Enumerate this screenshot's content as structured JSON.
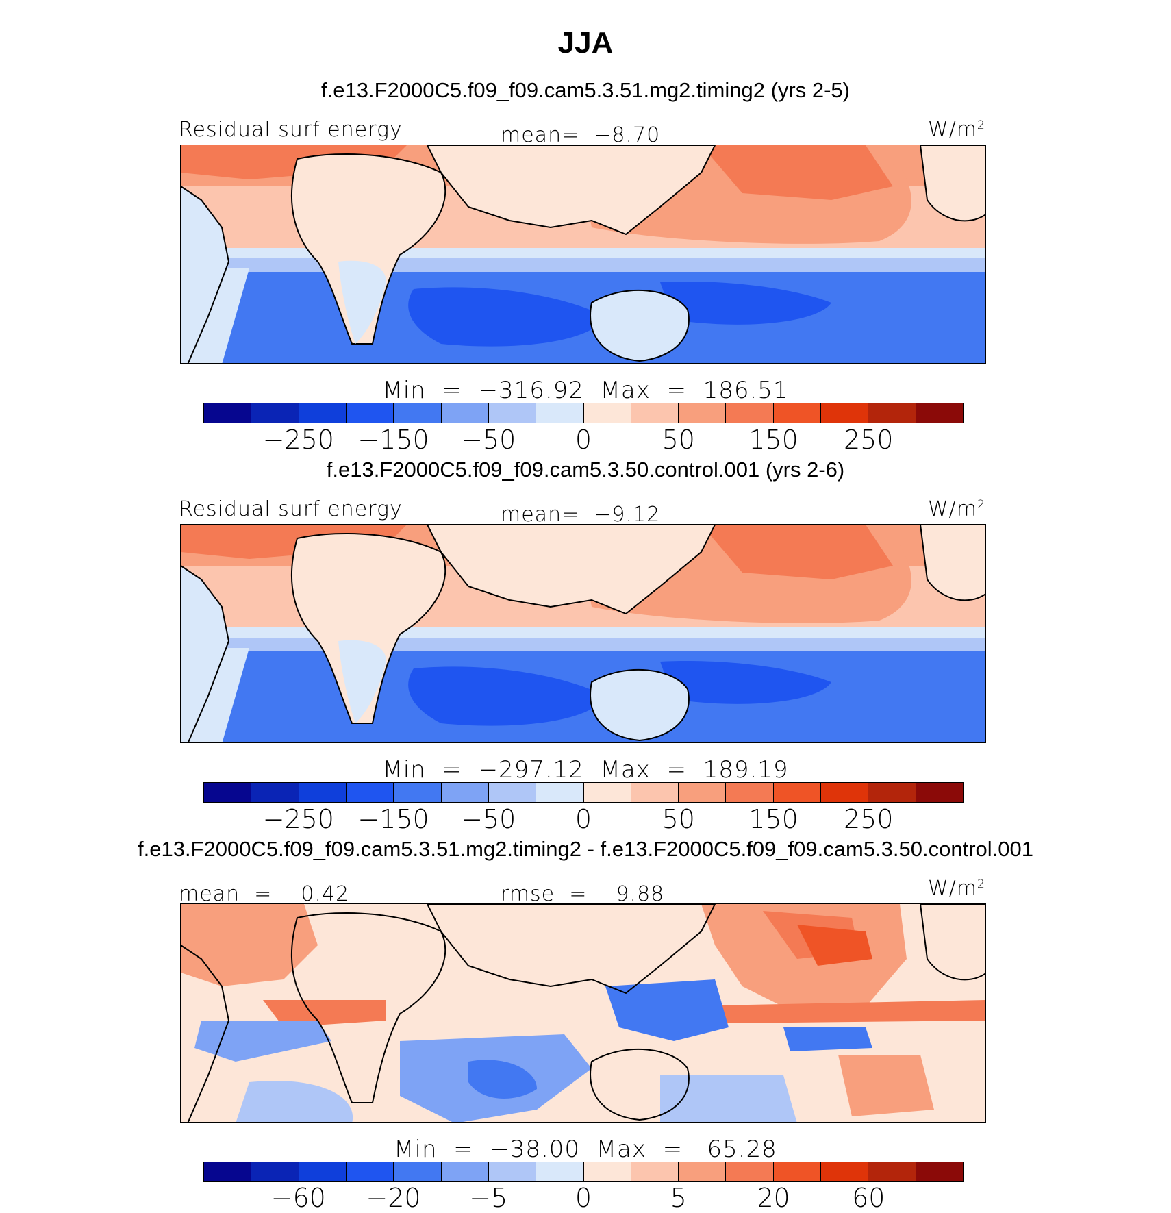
{
  "title": "JJA",
  "colors": {
    "full": [
      "#06068f",
      "#0a24b5",
      "#0f3fdb",
      "#1f55f0",
      "#4278f2",
      "#7ea3f5",
      "#afc6f7",
      "#d9e8fa",
      "#fde6d8",
      "#fcc5ae",
      "#f89f7d",
      "#f47a54",
      "#ef5426",
      "#df3409",
      "#b3250b",
      "#8b0a08"
    ],
    "diff": [
      "#06068f",
      "#0a24b5",
      "#0f3fdb",
      "#1f55f0",
      "#4278f2",
      "#7ea3f5",
      "#afc6f7",
      "#d9e8fa",
      "#fde6d8",
      "#fcc5ae",
      "#f89f7d",
      "#f47a54",
      "#ef5426",
      "#df3409",
      "#b3250b",
      "#8b0a08"
    ]
  },
  "panels": [
    {
      "case_title": "f.e13.F2000C5.f09_f09.cam5.3.51.mg2.timing2 (yrs 2-5)",
      "left_label": "Residual surf energy",
      "center_label": "mean=  −8.70",
      "units": "W/m",
      "units_sup": "2",
      "min_max": "Min  =  −316.92  Max  =  186.51",
      "tick_labels": [
        "−250",
        "−150",
        "−50",
        "0",
        "50",
        "150",
        "250"
      ]
    },
    {
      "case_title": "f.e13.F2000C5.f09_f09.cam5.3.50.control.001 (yrs 2-6)",
      "left_label": "Residual surf energy",
      "center_label": "mean=  −9.12",
      "units": "W/m",
      "units_sup": "2",
      "min_max": "Min  =  −297.12  Max  =  189.19",
      "tick_labels": [
        "−250",
        "−150",
        "−50",
        "0",
        "50",
        "150",
        "250"
      ]
    },
    {
      "case_title": "f.e13.F2000C5.f09_f09.cam5.3.51.mg2.timing2 - f.e13.F2000C5.f09_f09.cam5.3.50.control.001",
      "left_label": "mean  =    0.42",
      "center_label": "rmse  =    9.88",
      "units": "W/m",
      "units_sup": "2",
      "min_max": "Min  =  −38.00  Max  =   65.28",
      "tick_labels": [
        "−60",
        "−20",
        "−5",
        "0",
        "5",
        "20",
        "60"
      ]
    }
  ]
}
